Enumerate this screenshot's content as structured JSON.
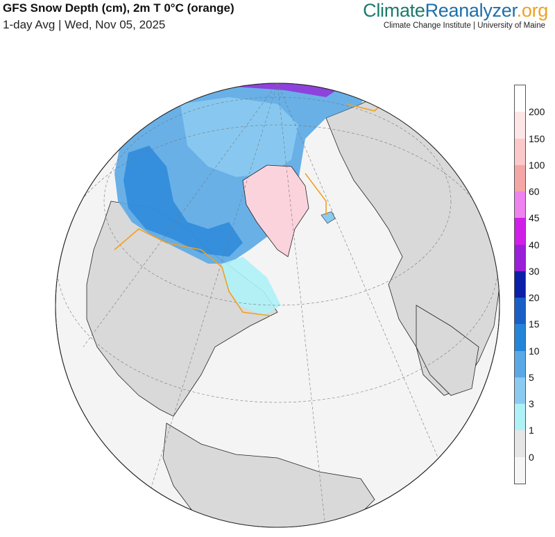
{
  "header": {
    "title": "GFS Snow Depth (cm), 2m T 0°C (orange)",
    "subtitle": "1-day Avg | Wed, Nov 05, 2025",
    "brand_part1": "Climate",
    "brand_part2": "Reanalyzer",
    "brand_part3": ".org",
    "institution": "Climate Change Institute | University of Maine"
  },
  "colors": {
    "ocean": "#f4f4f4",
    "land": "#d9d9d9",
    "isotherm": "#f0a020",
    "greenland_ice": "#fbd3dd"
  },
  "legend": {
    "labels": [
      "200",
      "150",
      "100",
      "60",
      "45",
      "40",
      "30",
      "20",
      "15",
      "10",
      "5",
      "3",
      "1",
      "0"
    ],
    "colors": [
      "#ffffff",
      "#fde6e6",
      "#fbc9c9",
      "#f5a6a6",
      "#ee82ee",
      "#d01fe8",
      "#9b1ed8",
      "#0b1fa8",
      "#1a5fc6",
      "#2484d8",
      "#5aa9e6",
      "#8ccbf1",
      "#aef2f7",
      "#e6e6e6",
      "#f6f6f6"
    ]
  }
}
